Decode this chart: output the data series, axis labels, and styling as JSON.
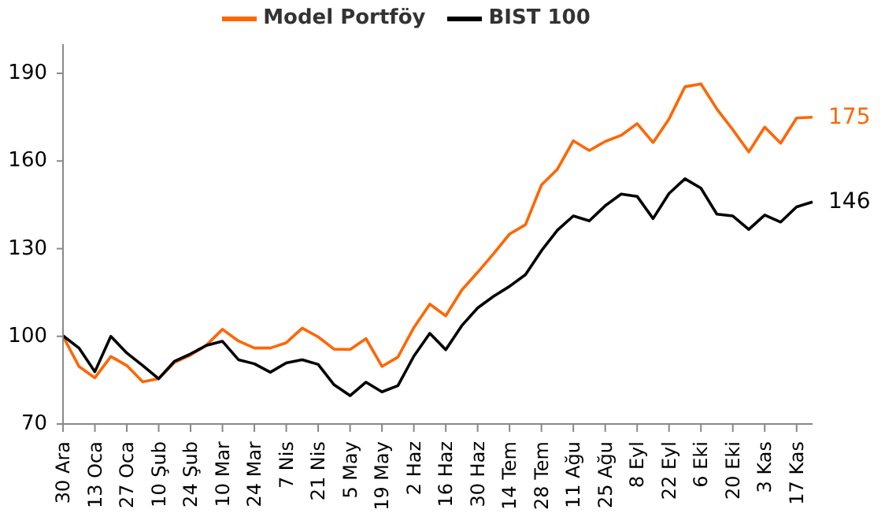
{
  "chart_data": {
    "type": "line",
    "categories": [
      "30 Ara",
      null,
      "13 Oca",
      null,
      "27 Oca",
      null,
      "10 Şub",
      null,
      "24 Şub",
      null,
      "10 Mar",
      null,
      "24 Mar",
      null,
      "7 Nis",
      null,
      "21 Nis",
      null,
      "5 May",
      null,
      "19 May",
      null,
      "2 Haz",
      null,
      "16 Haz",
      null,
      "30 Haz",
      null,
      "14 Tem",
      null,
      "28 Tem",
      null,
      "11 Ağu",
      null,
      "25 Ağu",
      null,
      "8 Eyl",
      null,
      "22 Eyl",
      null,
      "6 Eki",
      null,
      "20 Eki",
      null,
      "3 Kas",
      null,
      "17 Kas",
      null
    ],
    "ylim": [
      70,
      200
    ],
    "yticks": [
      70,
      100,
      130,
      160,
      190
    ],
    "legend": "top",
    "marker": "none",
    "series": [
      {
        "name": "Model Portföy",
        "color": "#ff6600",
        "values": [
          100,
          89.7,
          85.8,
          93.1,
          90,
          84.4,
          85.5,
          91.1,
          93.6,
          97,
          102.4,
          98.4,
          96,
          96,
          97.8,
          102.8,
          99.8,
          95.6,
          95.5,
          99.2,
          89.7,
          92.9,
          103,
          111,
          107,
          115.8,
          121.9,
          128.3,
          135,
          138.2,
          151.8,
          157.2,
          166.9,
          163.6,
          166.7,
          168.8,
          172.8,
          166.3,
          174.4,
          185.4,
          186.4,
          177.8,
          170.7,
          163.1,
          171.6,
          166.1,
          174.7,
          175
        ],
        "value_labels": [
          null,
          null,
          null,
          null,
          null,
          null,
          null,
          null,
          null,
          null,
          null,
          null,
          null,
          null,
          null,
          null,
          null,
          null,
          null,
          null,
          null,
          null,
          null,
          null,
          null,
          null,
          null,
          null,
          null,
          null,
          null,
          null,
          null,
          null,
          null,
          null,
          null,
          null,
          null,
          null,
          null,
          null,
          null,
          null,
          null,
          null,
          null,
          "175"
        ]
      },
      {
        "name": "BIST 100",
        "color": "#000000",
        "values": [
          100.2,
          96,
          87.9,
          100,
          94.3,
          90,
          85.5,
          91.5,
          94,
          96.9,
          98.3,
          92,
          90.6,
          87.7,
          90.9,
          92,
          90.4,
          83.4,
          79.7,
          84.3,
          81,
          83.1,
          93.2,
          101,
          95.4,
          103.6,
          109.7,
          113.7,
          117.1,
          121.1,
          129.3,
          136.3,
          141.2,
          139.5,
          144.7,
          148.7,
          147.9,
          140.3,
          148.9,
          153.9,
          150.7,
          141.8,
          141.2,
          136.6,
          141.5,
          139.1,
          144.3,
          146
        ],
        "value_labels": [
          null,
          null,
          null,
          null,
          null,
          null,
          null,
          null,
          null,
          null,
          null,
          null,
          null,
          null,
          null,
          null,
          null,
          null,
          null,
          null,
          null,
          null,
          null,
          null,
          null,
          null,
          null,
          null,
          null,
          null,
          null,
          null,
          null,
          null,
          null,
          null,
          null,
          null,
          null,
          null,
          null,
          null,
          null,
          null,
          null,
          null,
          null,
          "146"
        ]
      }
    ]
  }
}
